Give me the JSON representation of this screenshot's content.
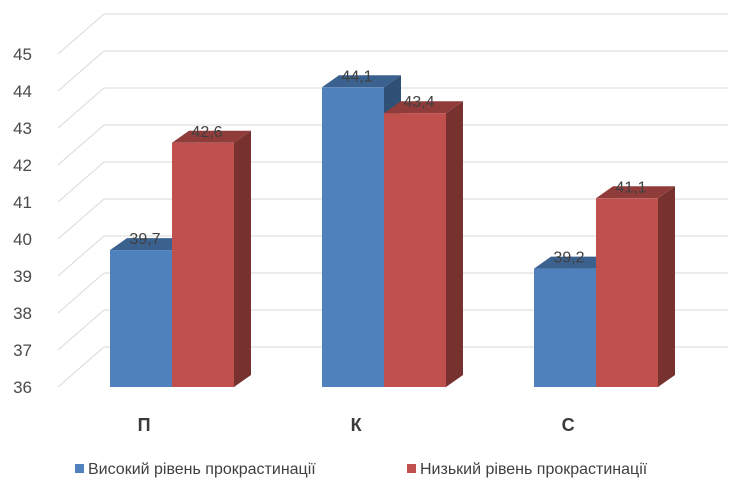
{
  "chart_data": {
    "type": "bar",
    "title": "",
    "xlabel": "",
    "ylabel": "",
    "ylim": [
      36,
      45
    ],
    "yticks": [
      36,
      37,
      38,
      39,
      40,
      41,
      42,
      43,
      44,
      45
    ],
    "categories": [
      "П",
      "К",
      "С"
    ],
    "series": [
      {
        "name": "Високий рівень прокрастинації",
        "color": "#4f81bd",
        "values": [
          39.7,
          44.1,
          39.2
        ],
        "labels": [
          "39,7",
          "44,1",
          "39,2"
        ]
      },
      {
        "name": "Низький рівень прокрастинації",
        "color": "#c0504d",
        "values": [
          42.6,
          43.4,
          41.1
        ],
        "labels": [
          "42,6",
          "43,4",
          "41,1"
        ]
      }
    ],
    "grid": true,
    "style": "3d-column",
    "legend": "bottom"
  }
}
